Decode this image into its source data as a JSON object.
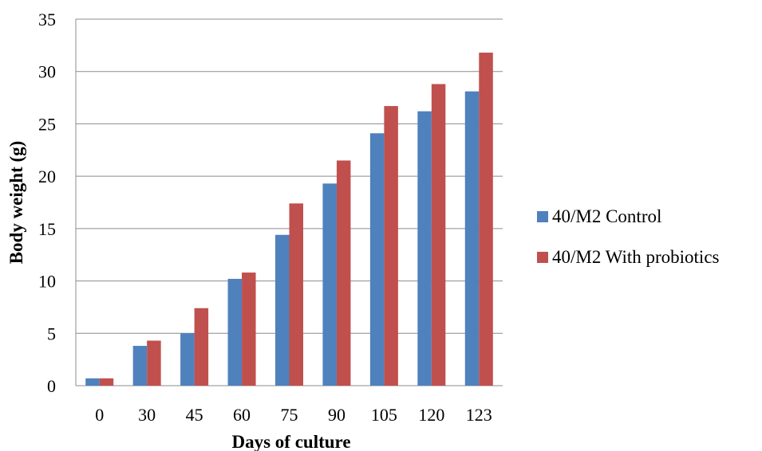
{
  "chart_data": {
    "type": "bar",
    "categories": [
      "0",
      "30",
      "45",
      "60",
      "75",
      "90",
      "105",
      "120",
      "123"
    ],
    "series": [
      {
        "name": "40/M2 Control",
        "color": "#4f81bd",
        "values": [
          0.7,
          3.8,
          5.0,
          10.2,
          14.4,
          19.3,
          24.1,
          26.2,
          28.1
        ]
      },
      {
        "name": "40/M2 With probiotics",
        "color": "#c0504d",
        "values": [
          0.7,
          4.3,
          7.4,
          10.8,
          17.4,
          21.5,
          26.7,
          28.8,
          31.8
        ]
      }
    ],
    "xlabel": "Days of culture",
    "ylabel": "Body weight (g)",
    "ylim": [
      0,
      35
    ],
    "yticks": [
      0,
      5,
      10,
      15,
      20,
      25,
      30,
      35
    ],
    "grid": true,
    "legend_position": "right"
  }
}
